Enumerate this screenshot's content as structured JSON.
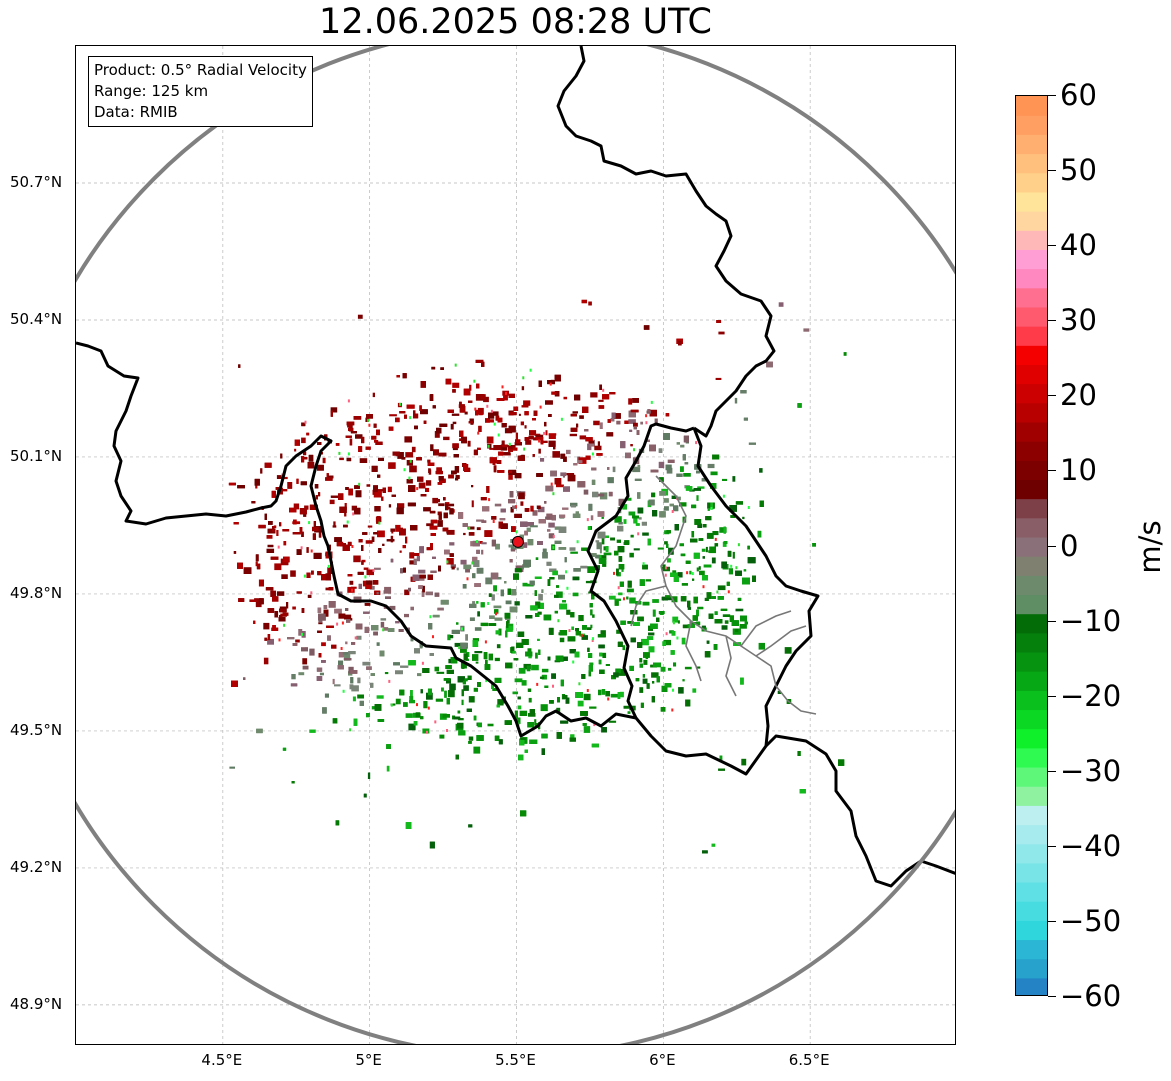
{
  "title": "12.06.2025 08:28 UTC",
  "info": {
    "product": "Product: 0.5° Radial Velocity",
    "range": "Range: 125 km",
    "source": "Data: RMIB"
  },
  "axes": {
    "lat_labels": [
      "50.7°N",
      "50.4°N",
      "50.1°N",
      "49.8°N",
      "49.5°N",
      "49.2°N",
      "48.9°N"
    ],
    "lat_values": [
      50.7,
      50.4,
      50.1,
      49.8,
      49.5,
      49.2,
      48.9
    ],
    "lon_labels": [
      "4.5°E",
      "5°E",
      "5.5°E",
      "6°E",
      "6.5°E"
    ],
    "lon_values": [
      4.5,
      5.0,
      5.5,
      6.0,
      6.5
    ],
    "lon_range": [
      4.0,
      7.0
    ],
    "lat_range": [
      48.81,
      51.0
    ]
  },
  "radar": {
    "lon": 5.505,
    "lat": 49.914,
    "range_km": 125,
    "marker_color": "#e8121c"
  },
  "colorbar": {
    "unit": "m/s",
    "min": -60,
    "max": 60,
    "tick_labels": [
      "60",
      "50",
      "40",
      "30",
      "20",
      "10",
      "0",
      "−10",
      "−20",
      "−30",
      "−40",
      "−50",
      "−60"
    ],
    "tick_values": [
      60,
      50,
      40,
      30,
      20,
      10,
      0,
      -10,
      -20,
      -30,
      -40,
      -50,
      -60
    ],
    "colors": [
      "#2383c4",
      "#26a2cc",
      "#2ab6d4",
      "#2fd7dc",
      "#46dce0",
      "#5fe0e4",
      "#78e4e8",
      "#90e8eb",
      "#a8ebee",
      "#bdeff1",
      "#8ef2a0",
      "#5ef77a",
      "#2ffa52",
      "#0ff02a",
      "#0bd822",
      "#09c01c",
      "#07a816",
      "#069410",
      "#05800c",
      "#046c06",
      "#5f8d64",
      "#6e8a6c",
      "#808070",
      "#8a7078",
      "#8a5e66",
      "#7e4048",
      "#6e0000",
      "#7d0000",
      "#8d0000",
      "#a00000",
      "#b80000",
      "#cc0000",
      "#e00000",
      "#f50000",
      "#ff3b4a",
      "#ff5a6e",
      "#ff7090",
      "#ff88c0",
      "#ff9ed4",
      "#ffb8b8",
      "#ffd6a0",
      "#ffe49a",
      "#ffd08a",
      "#ffc07e",
      "#ffb070",
      "#ffa062",
      "#ff9454"
    ]
  }
}
